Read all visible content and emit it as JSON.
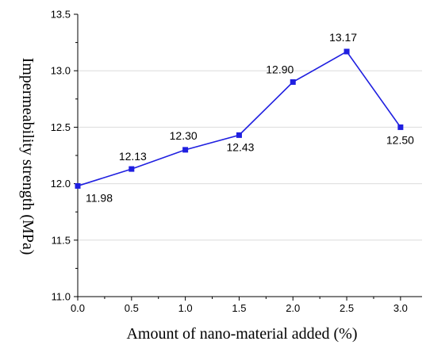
{
  "chart_data": {
    "type": "line",
    "title": "",
    "xlabel": "Amount of nano-material added (%)",
    "ylabel": "Impermeability strength (MPa)",
    "xlim": [
      0.0,
      3.2
    ],
    "ylim": [
      11.0,
      13.5
    ],
    "x_ticks": [
      "0.0",
      "0.5",
      "1.0",
      "1.5",
      "2.0",
      "2.5",
      "3.0"
    ],
    "y_ticks": [
      "11.0",
      "11.5",
      "12.0",
      "12.5",
      "13.0",
      "13.5"
    ],
    "grid": "horizontal",
    "series": [
      {
        "color": "#1f1fe0",
        "marker": "square",
        "x": [
          0.0,
          0.5,
          1.0,
          1.5,
          2.0,
          2.5,
          3.0
        ],
        "y": [
          11.98,
          12.13,
          12.3,
          12.43,
          12.9,
          13.17,
          12.5
        ],
        "labels": [
          "11.98",
          "12.13",
          "12.30",
          "12.43",
          "12.90",
          "13.17",
          "12.50"
        ]
      }
    ]
  }
}
